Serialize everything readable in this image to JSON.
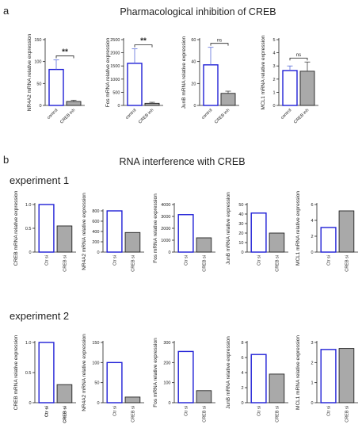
{
  "figure": {
    "panel_a_letter": "a",
    "panel_a_title": "Pharmacological inhibition of CREB",
    "panel_b_letter": "b",
    "panel_b_title": "RNA interference with CREB",
    "experiment_1_label": "experiment 1",
    "experiment_2_label": "experiment 2"
  },
  "colors": {
    "control": "#1f1fd6",
    "treatment": "#a9a9a9",
    "error": "#5a6cd9",
    "axis": "#222222"
  },
  "chart_data": [
    {
      "id": "a1",
      "type": "bar",
      "ylabel": "NR4A2 mRNA relative expression",
      "categories": [
        "control",
        "CREB inh"
      ],
      "values": [
        82,
        9
      ],
      "errors": [
        22,
        3
      ],
      "ylim": [
        0,
        150
      ],
      "yticks": [
        0,
        50,
        100,
        150
      ],
      "tick_labels": [
        "0",
        "50",
        "100",
        "150"
      ],
      "significance": "**",
      "cat_style": "rot"
    },
    {
      "id": "a2",
      "type": "bar",
      "ylabel": "Fos mRNA relative expression",
      "categories": [
        "control",
        "CREB inh"
      ],
      "values": [
        1600,
        80
      ],
      "errors": [
        550,
        40
      ],
      "ylim": [
        0,
        2500
      ],
      "yticks": [
        0,
        500,
        1000,
        1500,
        2000,
        2500
      ],
      "tick_labels": [
        "0",
        "500",
        "1000",
        "1500",
        "2000",
        "2500"
      ],
      "significance": "**",
      "cat_style": "rot"
    },
    {
      "id": "a3",
      "type": "bar",
      "ylabel": "JunB mRNA relative expression",
      "categories": [
        "control",
        "CREB inh"
      ],
      "values": [
        37,
        11
      ],
      "errors": [
        16,
        2
      ],
      "ylim": [
        0,
        60
      ],
      "yticks": [
        0,
        20,
        40,
        60
      ],
      "tick_labels": [
        "0",
        "20",
        "40",
        "60"
      ],
      "significance": "ns",
      "cat_style": "rot"
    },
    {
      "id": "a4",
      "type": "bar",
      "ylabel": "MCL1 mRNA relative expression",
      "categories": [
        "control",
        "CREB inh"
      ],
      "values": [
        2.65,
        2.6
      ],
      "errors": [
        0.35,
        0.7
      ],
      "ylim": [
        0,
        5
      ],
      "yticks": [
        0,
        1,
        2,
        3,
        4,
        5
      ],
      "tick_labels": [
        "0",
        "1",
        "2",
        "3",
        "4",
        "5"
      ],
      "significance": "ns",
      "cat_style": "rot"
    },
    {
      "id": "b1",
      "type": "bar",
      "ylabel": "CREB mRNA relative expression",
      "categories": [
        "Ctr si",
        "CREB si"
      ],
      "values": [
        1.0,
        0.55
      ],
      "ylim": [
        0,
        1.0
      ],
      "yticks": [
        0,
        0.5,
        1.0
      ],
      "tick_labels": [
        "0",
        "0.5",
        "1.0"
      ],
      "cat_style": "vert"
    },
    {
      "id": "b2",
      "type": "bar",
      "ylabel": "NR4A2 mRNA relative expression",
      "categories": [
        "Ctr si",
        "CREB si"
      ],
      "values": [
        800,
        380
      ],
      "ylim": [
        0,
        800
      ],
      "yticks": [
        0,
        200,
        400,
        600,
        800
      ],
      "tick_labels": [
        "0",
        "200",
        "400",
        "600",
        "800"
      ],
      "cat_style": "vert"
    },
    {
      "id": "b3",
      "type": "bar",
      "ylabel": "Fos mRNA relative expression",
      "categories": [
        "Ctr si",
        "CREB si"
      ],
      "values": [
        3150,
        1200
      ],
      "ylim": [
        0,
        4000
      ],
      "yticks": [
        0,
        1000,
        2000,
        3000,
        4000
      ],
      "tick_labels": [
        "0",
        "1000",
        "2000",
        "3000",
        "4000"
      ],
      "cat_style": "vert"
    },
    {
      "id": "b4",
      "type": "bar",
      "ylabel": "JunB mRNA relative expression",
      "categories": [
        "Ctr si",
        "CREB si"
      ],
      "values": [
        41,
        20
      ],
      "ylim": [
        0,
        50
      ],
      "yticks": [
        0,
        10,
        20,
        30,
        40,
        50
      ],
      "tick_labels": [
        "0",
        "10",
        "20",
        "30",
        "40",
        "50"
      ],
      "cat_style": "vert"
    },
    {
      "id": "b5",
      "type": "bar",
      "ylabel": "MCL1 mRNA relative expression",
      "categories": [
        "Ctr si",
        "CREB si"
      ],
      "values": [
        3.1,
        5.2
      ],
      "ylim": [
        0,
        6
      ],
      "yticks": [
        0,
        2,
        4,
        6
      ],
      "tick_labels": [
        "0",
        "2",
        "4",
        "6"
      ],
      "cat_style": "vert"
    },
    {
      "id": "c1",
      "type": "bar",
      "ylabel": "CREB mRNA relative expression",
      "categories": [
        "Ctr si",
        "CREB si"
      ],
      "values": [
        1.0,
        0.3
      ],
      "ylim": [
        0,
        1.0
      ],
      "yticks": [
        0,
        0.5,
        1.0
      ],
      "tick_labels": [
        "0",
        "0.5",
        "1.0"
      ],
      "cat_style": "vert",
      "cat_bold": true
    },
    {
      "id": "c2",
      "type": "bar",
      "ylabel": "NR4A2 mRNA relative expression",
      "categories": [
        "Ctr si",
        "CREB si"
      ],
      "values": [
        100,
        14
      ],
      "ylim": [
        0,
        150
      ],
      "yticks": [
        0,
        50,
        100,
        150
      ],
      "tick_labels": [
        "0",
        "50",
        "100",
        "150"
      ],
      "cat_style": "vert"
    },
    {
      "id": "c3",
      "type": "bar",
      "ylabel": "Fos mRNA relative expression",
      "categories": [
        "Ctr si",
        "CREB si"
      ],
      "values": [
        255,
        60
      ],
      "ylim": [
        0,
        300
      ],
      "yticks": [
        0,
        100,
        200,
        300
      ],
      "tick_labels": [
        "0",
        "100",
        "200",
        "300"
      ],
      "cat_style": "vert"
    },
    {
      "id": "c4",
      "type": "bar",
      "ylabel": "JunB mRNA relative expression",
      "categories": [
        "Ctr si",
        "CREB si"
      ],
      "values": [
        6.4,
        3.8
      ],
      "ylim": [
        0,
        8
      ],
      "yticks": [
        0,
        2,
        4,
        6,
        8
      ],
      "tick_labels": [
        "0",
        "2",
        "4",
        "6",
        "8"
      ],
      "cat_style": "vert"
    },
    {
      "id": "c5",
      "type": "bar",
      "ylabel": "MCL1 mRNA relative expression",
      "categories": [
        "Ctr si",
        "CREB si"
      ],
      "values": [
        2.65,
        2.7
      ],
      "ylim": [
        0,
        3
      ],
      "yticks": [
        0,
        1,
        2,
        3
      ],
      "tick_labels": [
        "0",
        "1",
        "2",
        "3"
      ],
      "cat_style": "vert"
    }
  ]
}
